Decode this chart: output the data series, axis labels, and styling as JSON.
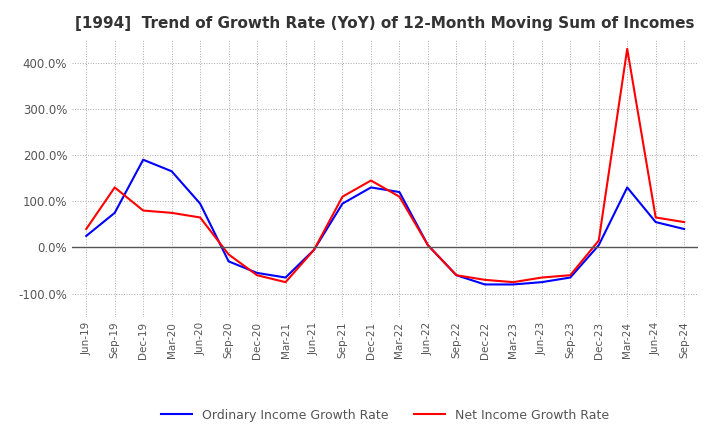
{
  "title": "[1994]  Trend of Growth Rate (YoY) of 12-Month Moving Sum of Incomes",
  "x_labels": [
    "Jun-19",
    "Sep-19",
    "Dec-19",
    "Mar-20",
    "Jun-20",
    "Sep-20",
    "Dec-20",
    "Mar-21",
    "Jun-21",
    "Sep-21",
    "Dec-21",
    "Mar-22",
    "Jun-22",
    "Sep-22",
    "Dec-22",
    "Mar-23",
    "Jun-23",
    "Sep-23",
    "Dec-23",
    "Mar-24",
    "Jun-24",
    "Sep-24"
  ],
  "ordinary_income": [
    25,
    75,
    190,
    165,
    95,
    -30,
    -55,
    -65,
    -5,
    95,
    130,
    120,
    5,
    -60,
    -80,
    -80,
    -75,
    -65,
    5,
    130,
    55,
    40
  ],
  "net_income": [
    40,
    130,
    80,
    75,
    65,
    -15,
    -60,
    -75,
    -5,
    110,
    145,
    110,
    5,
    -60,
    -70,
    -75,
    -65,
    -60,
    15,
    430,
    65,
    55
  ],
  "ordinary_color": "#0000ff",
  "net_color": "#ff0000",
  "ylim": [
    -150,
    450
  ],
  "yticks": [
    -100,
    0,
    100,
    200,
    300,
    400
  ],
  "background_color": "#ffffff",
  "grid_color": "#aaaaaa",
  "title_fontsize": 11,
  "legend_labels": [
    "Ordinary Income Growth Rate",
    "Net Income Growth Rate"
  ]
}
